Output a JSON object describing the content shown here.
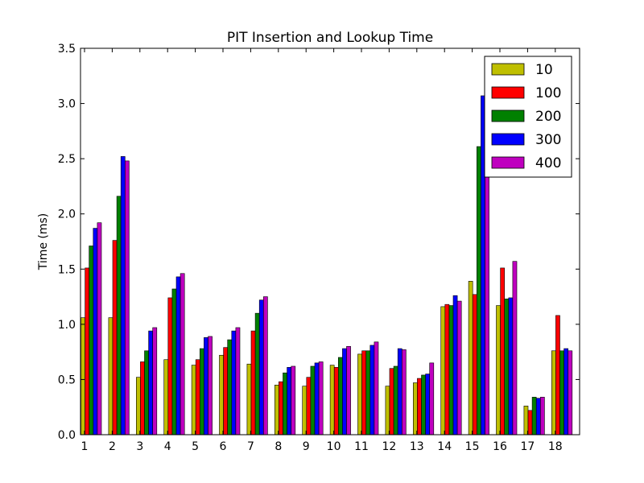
{
  "chart_data": {
    "type": "bar",
    "title": "PIT Insertion and Lookup Time",
    "xlabel": "",
    "ylabel": "Time (ms)",
    "ylim": [
      0,
      3.5
    ],
    "yticks": [
      "0.0",
      "0.5",
      "1.0",
      "1.5",
      "2.0",
      "2.5",
      "3.0",
      "3.5"
    ],
    "categories": [
      "1",
      "2",
      "3",
      "4",
      "5",
      "6",
      "7",
      "8",
      "9",
      "10",
      "11",
      "12",
      "13",
      "14",
      "15",
      "16",
      "17",
      "18"
    ],
    "legend_position": "top-right",
    "grid": false,
    "series": [
      {
        "name": "10",
        "color": "#bfbf00",
        "values": [
          1.06,
          1.06,
          0.52,
          0.68,
          0.63,
          0.72,
          0.64,
          0.45,
          0.44,
          0.63,
          0.73,
          0.44,
          0.47,
          1.16,
          1.39,
          1.17,
          0.26,
          0.76
        ]
      },
      {
        "name": "100",
        "color": "#ff0000",
        "values": [
          1.51,
          1.76,
          0.66,
          1.24,
          0.68,
          0.79,
          0.94,
          0.48,
          0.52,
          0.61,
          0.76,
          0.6,
          0.51,
          1.18,
          1.27,
          1.51,
          0.22,
          1.08
        ]
      },
      {
        "name": "200",
        "color": "#008000",
        "values": [
          1.71,
          2.16,
          0.76,
          1.32,
          0.78,
          0.86,
          1.1,
          0.56,
          0.62,
          0.7,
          0.76,
          0.62,
          0.54,
          1.17,
          2.61,
          1.23,
          0.34,
          0.76
        ]
      },
      {
        "name": "300",
        "color": "#0000ff",
        "values": [
          1.87,
          2.52,
          0.94,
          1.43,
          0.88,
          0.94,
          1.22,
          0.61,
          0.65,
          0.78,
          0.81,
          0.78,
          0.55,
          1.26,
          3.07,
          1.24,
          0.33,
          0.78
        ]
      },
      {
        "name": "400",
        "color": "#bf00bf",
        "values": [
          1.92,
          2.48,
          0.97,
          1.46,
          0.89,
          0.97,
          1.25,
          0.62,
          0.66,
          0.8,
          0.84,
          0.77,
          0.65,
          1.21,
          2.34,
          1.57,
          0.34,
          0.76
        ]
      }
    ]
  }
}
